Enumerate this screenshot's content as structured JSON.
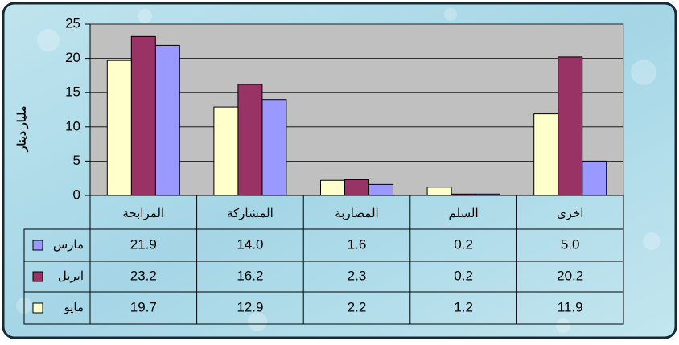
{
  "chart_data": {
    "type": "bar",
    "y_label": "مليار دينار",
    "categories": [
      "المرابحة",
      "المشاركة",
      "المضاربة",
      "السلم",
      "اخرى"
    ],
    "series": [
      {
        "name": "مارس",
        "color": "#9999ff",
        "values": [
          21.9,
          14.0,
          1.6,
          0.2,
          5.0
        ],
        "value_labels": [
          "21.9",
          "14.0",
          "1.6",
          "0.2",
          "5.0"
        ]
      },
      {
        "name": "ابريل",
        "color": "#993366",
        "values": [
          23.2,
          16.2,
          2.3,
          0.2,
          20.2
        ],
        "value_labels": [
          "23.2",
          "16.2",
          "2.3",
          "0.2",
          "20.2"
        ]
      },
      {
        "name": "مايو",
        "color": "#ffffcc",
        "values": [
          19.7,
          12.9,
          2.2,
          1.2,
          11.9
        ],
        "value_labels": [
          "19.7",
          "12.9",
          "2.2",
          "1.2",
          "11.9"
        ]
      }
    ],
    "ylim": [
      0,
      25
    ],
    "yticks": [
      0,
      5,
      10,
      15,
      20,
      25
    ],
    "grid": true
  }
}
